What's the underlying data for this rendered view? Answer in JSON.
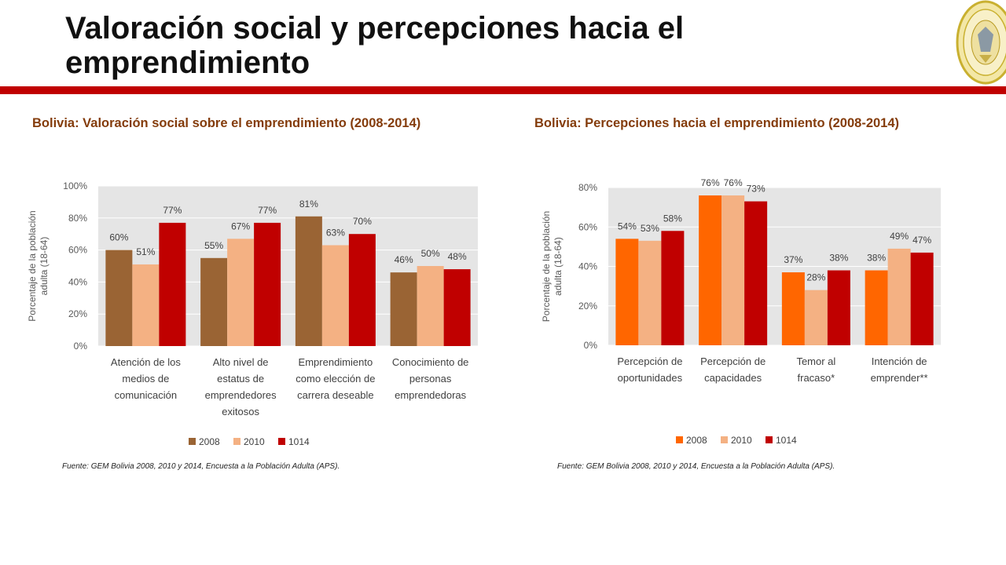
{
  "page": {
    "title": "Valoración social y percepciones hacia el emprendimiento",
    "accent_color": "#c00000"
  },
  "logo": {
    "icon": "university-seal-icon",
    "color": "#c9b030"
  },
  "chart_data": [
    {
      "type": "bar",
      "title": "Bolivia: Valoración social sobre el emprendimiento (2008-2014)",
      "ylabel": "Porcentaje de la población adulta (18-64)",
      "xlabel": "",
      "ylim": [
        0,
        100
      ],
      "yticks": [
        0,
        20,
        40,
        60,
        80,
        100
      ],
      "categories": [
        [
          "Atención de los",
          "medios de",
          "comunicación"
        ],
        [
          "Alto nivel de",
          "estatus de",
          "emprendedores",
          "exitosos"
        ],
        [
          "Emprendimiento",
          "como elección de",
          "carrera deseable"
        ],
        [
          "Conocimiento de",
          "personas",
          "emprendedoras"
        ]
      ],
      "series": [
        {
          "name": "2008",
          "color": "#9a6434",
          "values": [
            60,
            55,
            81,
            46
          ]
        },
        {
          "name": "2010",
          "color": "#f4b183",
          "values": [
            51,
            67,
            63,
            50
          ]
        },
        {
          "name": "1014",
          "color": "#c00000",
          "values": [
            77,
            77,
            70,
            48
          ]
        }
      ],
      "grid": true,
      "legend": "bottom",
      "source": "Fuente: GEM Bolivia 2008, 2010 y 2014, Encuesta a la Población Adulta (APS)."
    },
    {
      "type": "bar",
      "title": "Bolivia: Percepciones hacia el emprendimiento (2008-2014)",
      "ylabel": "Porcentaje de la población adulta (18-64)",
      "xlabel": "",
      "ylim": [
        0,
        80
      ],
      "yticks": [
        0,
        20,
        40,
        60,
        80
      ],
      "categories": [
        [
          "Percepción de",
          "oportunidades"
        ],
        [
          "Percepción de",
          "capacidades"
        ],
        [
          "Temor al",
          "fracaso*"
        ],
        [
          "Intención de",
          "emprender**"
        ]
      ],
      "series": [
        {
          "name": "2008",
          "color": "#ff6600",
          "values": [
            54,
            76,
            37,
            38
          ]
        },
        {
          "name": "2010",
          "color": "#f4b183",
          "values": [
            53,
            76,
            28,
            49
          ]
        },
        {
          "name": "1014",
          "color": "#c00000",
          "values": [
            58,
            73,
            38,
            47
          ]
        }
      ],
      "grid": true,
      "legend": "bottom",
      "source": "Fuente: GEM Bolivia 2008, 2010 y 2014, Encuesta a la Población Adulta (APS)."
    }
  ]
}
